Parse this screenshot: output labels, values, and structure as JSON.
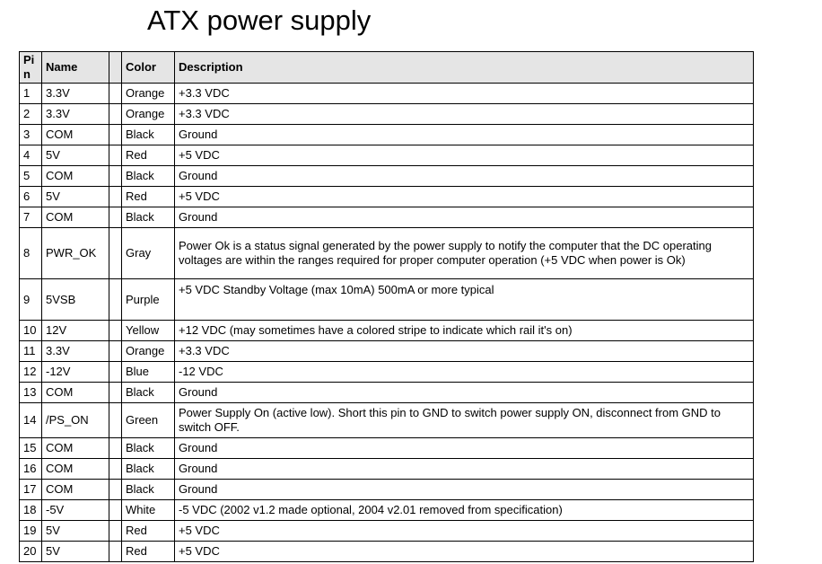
{
  "title": "ATX power supply",
  "colors": {
    "page_bg": "#ffffff",
    "header_bg": "#e5e5e5",
    "border": "#000000",
    "text": "#000000"
  },
  "table": {
    "headers": [
      "Pin",
      "Name",
      "",
      "Color",
      "Description"
    ],
    "rows": [
      {
        "pin": "1",
        "name": "3.3V",
        "color": "Orange",
        "description": "+3.3 VDC"
      },
      {
        "pin": "2",
        "name": "3.3V",
        "color": "Orange",
        "description": "+3.3 VDC"
      },
      {
        "pin": "3",
        "name": "COM",
        "color": "Black",
        "description": "Ground"
      },
      {
        "pin": "4",
        "name": "5V",
        "color": "Red",
        "description": "+5 VDC"
      },
      {
        "pin": "5",
        "name": "COM",
        "color": "Black",
        "description": "Ground"
      },
      {
        "pin": "6",
        "name": "5V",
        "color": "Red",
        "description": "+5 VDC"
      },
      {
        "pin": "7",
        "name": "COM",
        "color": "Black",
        "description": "Ground"
      },
      {
        "pin": "8",
        "name": "PWR_OK",
        "color": "Gray",
        "description": "Power Ok is a status signal generated by the power supply to notify the computer that the DC operating voltages are within the ranges required for proper computer operation (+5 VDC when power is Ok)"
      },
      {
        "pin": "9",
        "name": "5VSB",
        "color": "Purple",
        "description": "+5 VDC Standby Voltage (max 10mA) 500mA or more typical"
      },
      {
        "pin": "10",
        "name": "12V",
        "color": "Yellow",
        "description": "+12 VDC (may sometimes have a colored stripe to indicate which rail it's on)"
      },
      {
        "pin": "11",
        "name": "3.3V",
        "color": "Orange",
        "description": "+3.3 VDC"
      },
      {
        "pin": "12",
        "name": "-12V",
        "color": "Blue",
        "description": "-12 VDC"
      },
      {
        "pin": "13",
        "name": "COM",
        "color": "Black",
        "description": "Ground"
      },
      {
        "pin": "14",
        "name": "/PS_ON",
        "color": "Green",
        "description": "Power Supply On (active low). Short this pin to GND to switch power supply ON, disconnect from GND to switch OFF."
      },
      {
        "pin": "15",
        "name": "COM",
        "color": "Black",
        "description": "Ground"
      },
      {
        "pin": "16",
        "name": "COM",
        "color": "Black",
        "description": "Ground"
      },
      {
        "pin": "17",
        "name": "COM",
        "color": "Black",
        "description": "Ground"
      },
      {
        "pin": "18",
        "name": "-5V",
        "color": "White",
        "description": "-5 VDC (2002 v1.2 made optional, 2004 v2.01 removed from specification)"
      },
      {
        "pin": "19",
        "name": "5V",
        "color": "Red",
        "description": "+5 VDC"
      },
      {
        "pin": "20",
        "name": "5V",
        "color": "Red",
        "description": "+5 VDC"
      }
    ]
  }
}
